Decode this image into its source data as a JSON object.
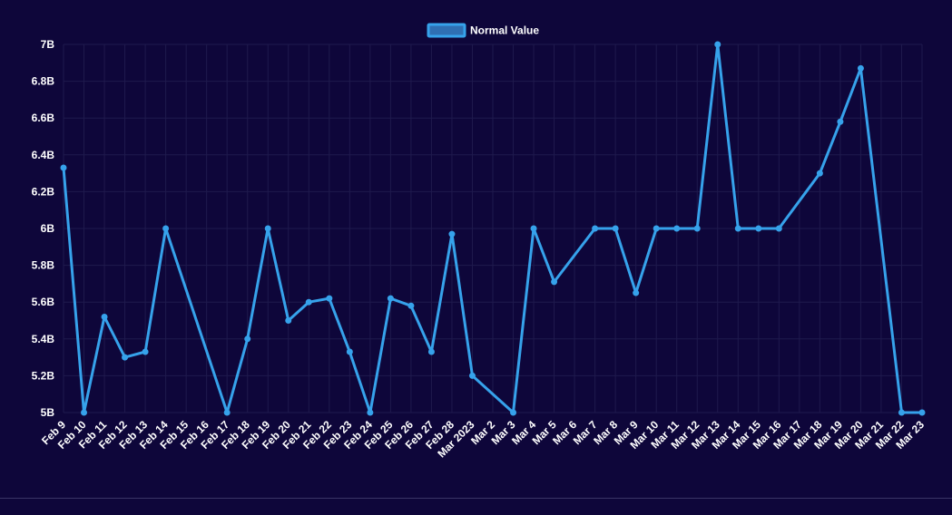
{
  "chart_data": {
    "type": "line",
    "title": "",
    "xlabel": "",
    "ylabel": "",
    "legend_position": "top-center",
    "ylim": [
      5000000000,
      7000000000
    ],
    "y_ticks": [
      "5B",
      "5.2B",
      "5.4B",
      "5.6B",
      "5.8B",
      "6B",
      "6.2B",
      "6.4B",
      "6.6B",
      "6.8B",
      "7B"
    ],
    "categories": [
      "Feb 9",
      "Feb 10",
      "Feb 11",
      "Feb 12",
      "Feb 13",
      "Feb 14",
      "Feb 15",
      "Feb 16",
      "Feb 17",
      "Feb 18",
      "Feb 19",
      "Feb 20",
      "Feb 21",
      "Feb 22",
      "Feb 23",
      "Feb 24",
      "Feb 25",
      "Feb 26",
      "Feb 27",
      "Feb 28",
      "Mar 2023",
      "Mar 2",
      "Mar 3",
      "Mar 4",
      "Mar 5",
      "Mar 6",
      "Mar 7",
      "Mar 8",
      "Mar 9",
      "Mar 10",
      "Mar 11",
      "Mar 12",
      "Mar 13",
      "Mar 14",
      "Mar 15",
      "Mar 16",
      "Mar 17",
      "Mar 18",
      "Mar 19",
      "Mar 20",
      "Mar 21",
      "Mar 22",
      "Mar 23"
    ],
    "series": [
      {
        "name": "Normal Value",
        "color": "#36a2eb",
        "values": [
          6330000000,
          5000000000,
          5520000000,
          5300000000,
          5330000000,
          6000000000,
          null,
          null,
          5000000000,
          5400000000,
          6000000000,
          5500000000,
          5600000000,
          5620000000,
          5330000000,
          5000000000,
          5620000000,
          5580000000,
          5330000000,
          5970000000,
          5200000000,
          null,
          5000000000,
          6000000000,
          5710000000,
          null,
          6000000000,
          6000000000,
          5650000000,
          6000000000,
          6000000000,
          6000000000,
          7000000000,
          6000000000,
          6000000000,
          6000000000,
          null,
          6300000000,
          6580000000,
          6870000000,
          null,
          5000000000,
          5000000000
        ]
      }
    ]
  },
  "colors": {
    "background": "#0e063a",
    "text": "#ffffff",
    "grid": "#1f1a4d",
    "line": "#36a2eb",
    "legend_fill": "#2f6fb3"
  }
}
